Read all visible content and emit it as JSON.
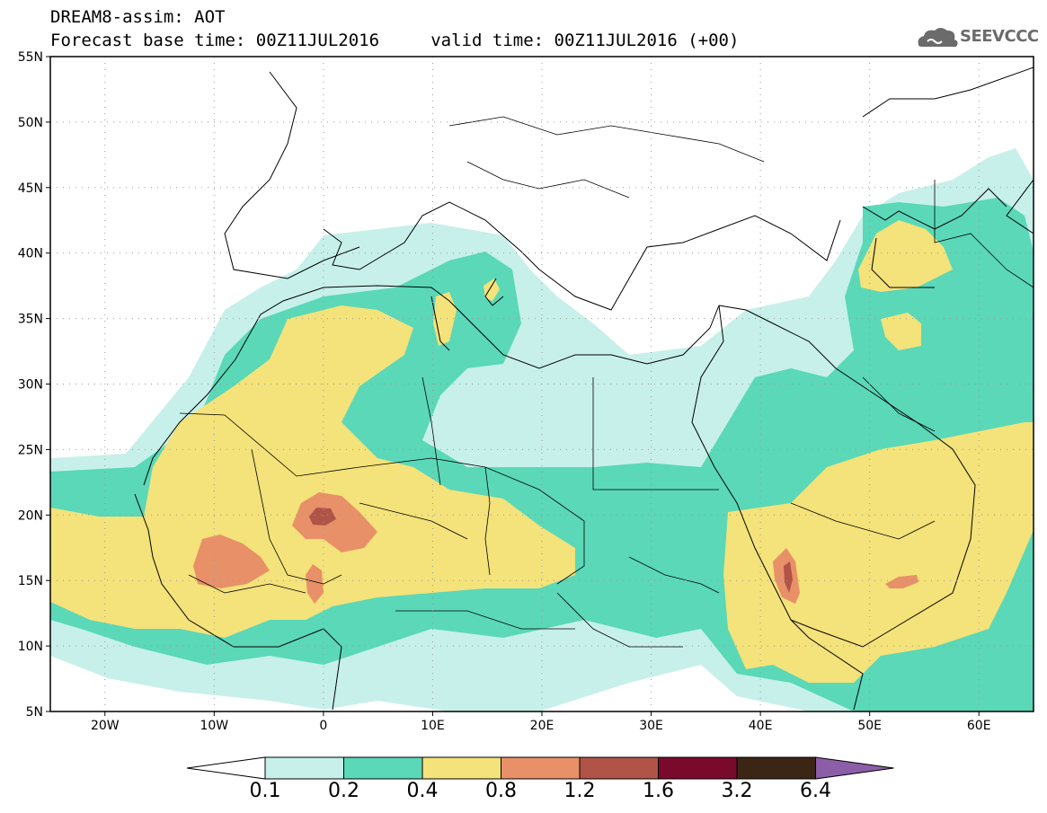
{
  "header": {
    "title_line1": "DREAM8-assim: AOT",
    "title_line2": "Forecast base time: 00Z11JUL2016     valid time: 00Z11JUL2016 (+00)"
  },
  "logo": {
    "text": "SEEVCCC",
    "icon": "cloud-icon"
  },
  "map": {
    "latitudes": [
      {
        "value": 55,
        "label": "55N"
      },
      {
        "value": 50,
        "label": "50N"
      },
      {
        "value": 45,
        "label": "45N"
      },
      {
        "value": 40,
        "label": "40N"
      },
      {
        "value": 35,
        "label": "35N"
      },
      {
        "value": 30,
        "label": "30N"
      },
      {
        "value": 25,
        "label": "25N"
      },
      {
        "value": 20,
        "label": "20N"
      },
      {
        "value": 15,
        "label": "15N"
      },
      {
        "value": 10,
        "label": "10N"
      },
      {
        "value": 5,
        "label": "5N"
      }
    ],
    "longitudes": [
      {
        "value": -20,
        "label": "20W"
      },
      {
        "value": -10,
        "label": "10W"
      },
      {
        "value": 0,
        "label": "0"
      },
      {
        "value": 10,
        "label": "10E"
      },
      {
        "value": 20,
        "label": "20E"
      },
      {
        "value": 30,
        "label": "30E"
      },
      {
        "value": 40,
        "label": "40E"
      },
      {
        "value": 50,
        "label": "50E"
      },
      {
        "value": 60,
        "label": "60E"
      }
    ],
    "extent": {
      "lon_min": -25,
      "lon_max": 65,
      "lat_min": 5,
      "lat_max": 55
    }
  },
  "colorbar": {
    "labels": [
      "0.1",
      "0.2",
      "0.4",
      "0.8",
      "1.2",
      "1.6",
      "3.2",
      "6.4"
    ],
    "colors": [
      "#c7f0ea",
      "#5ad8b8",
      "#f4e27a",
      "#e89068",
      "#b05448",
      "#7a0a2c",
      "#3b2616",
      "#8c5ea8"
    ]
  }
}
